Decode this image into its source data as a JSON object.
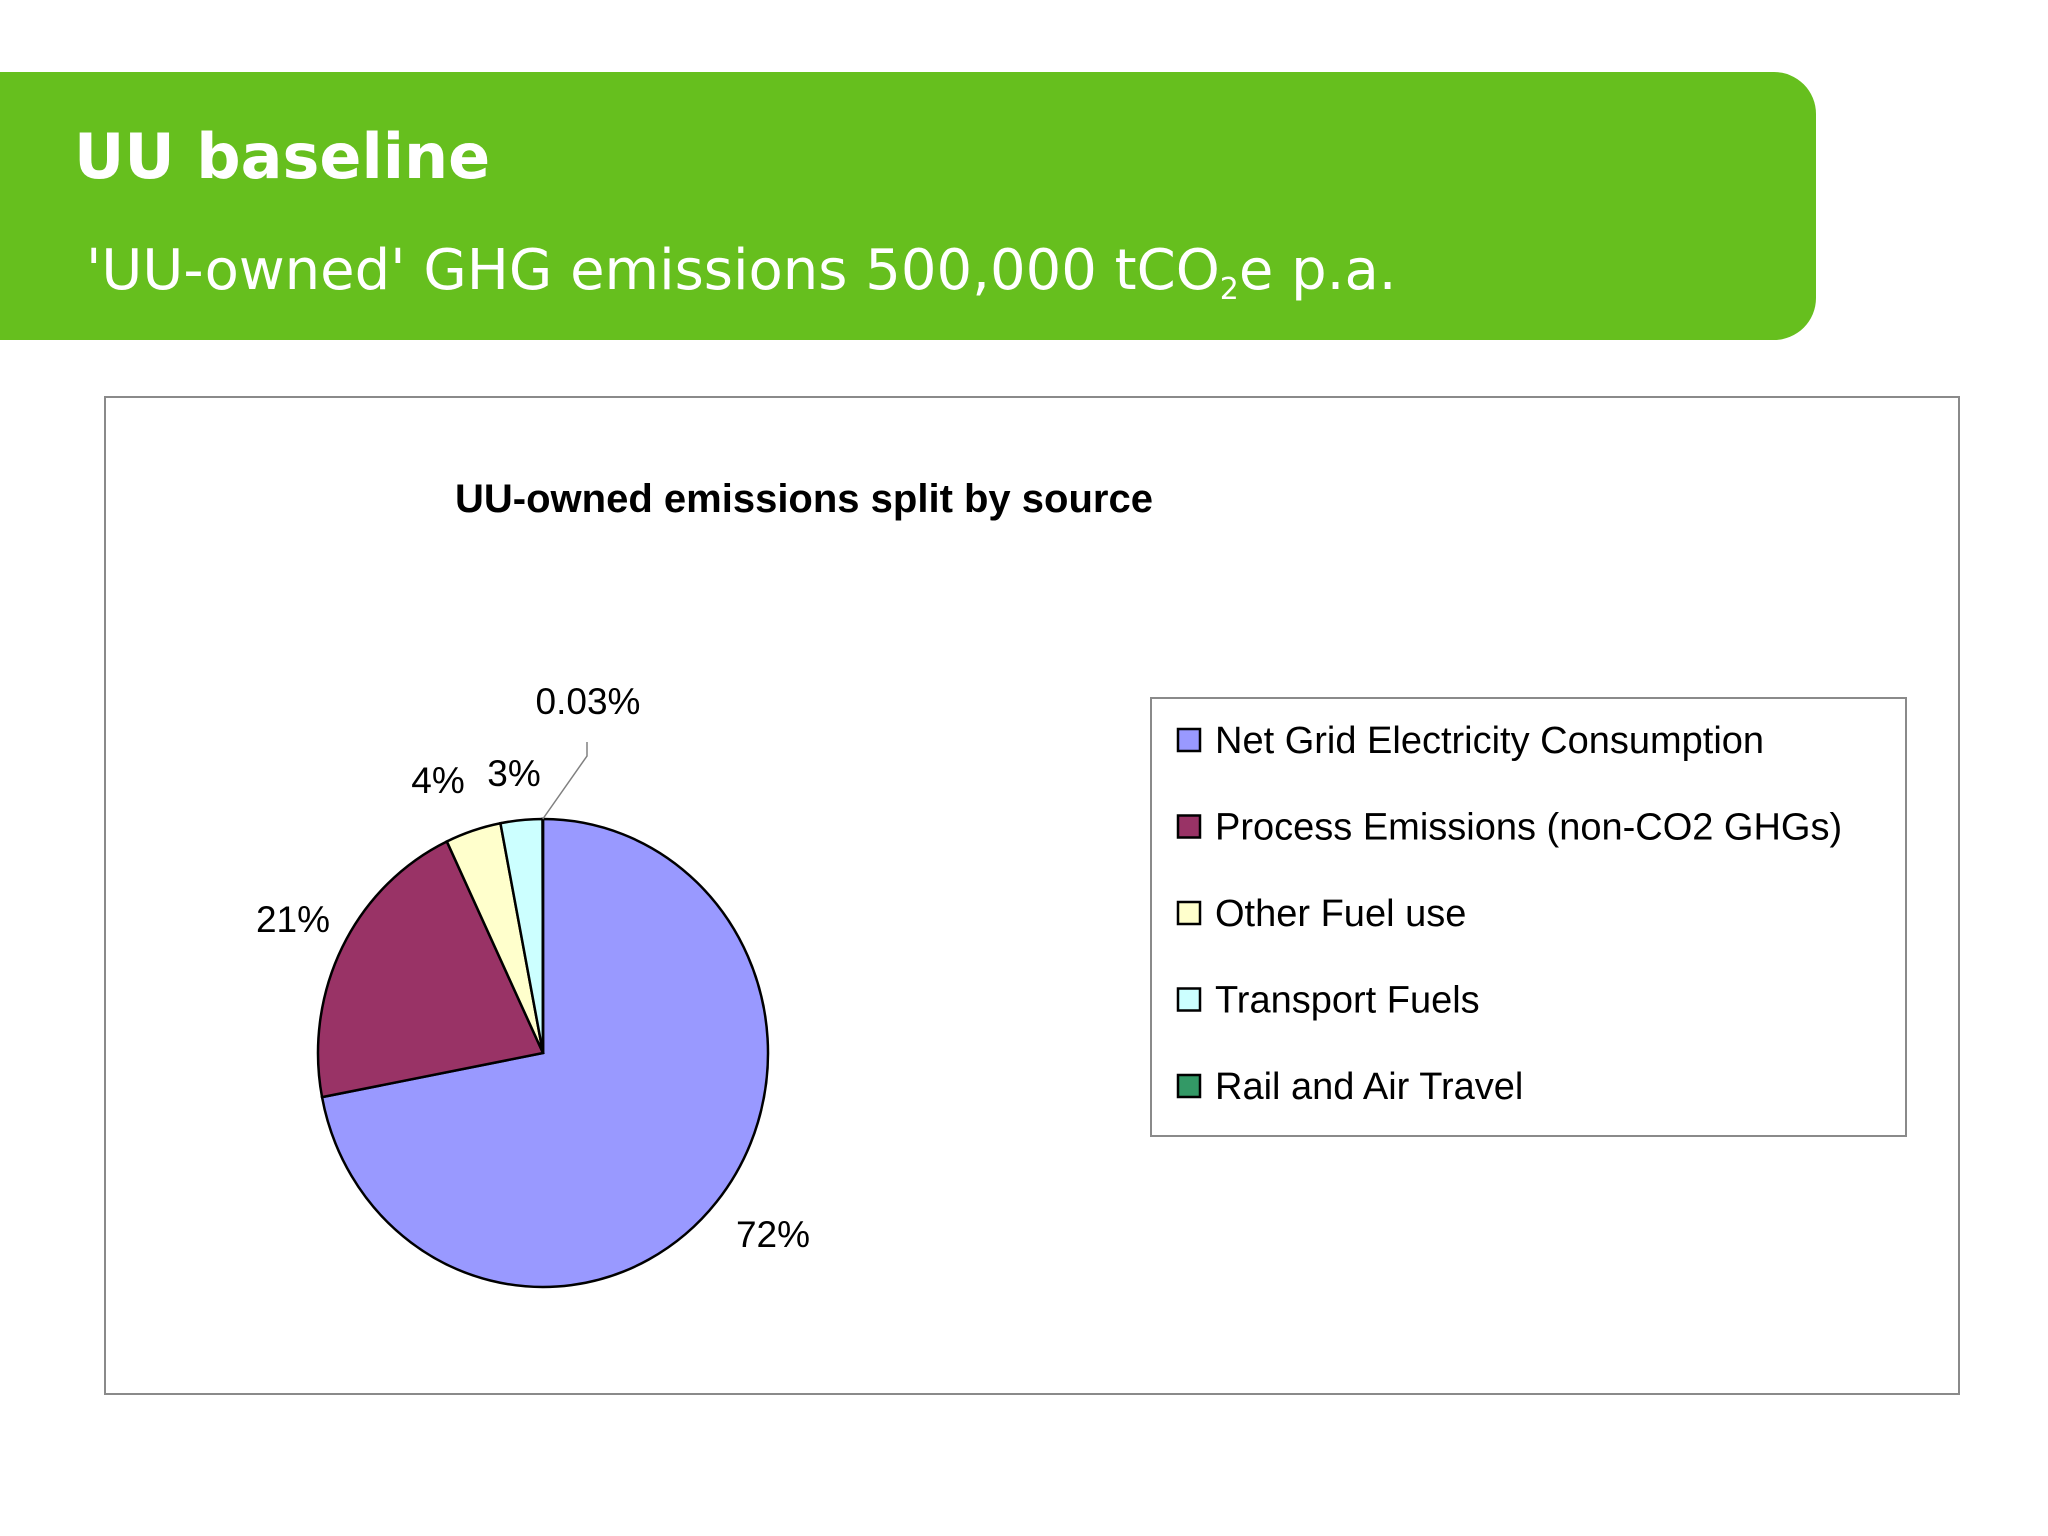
{
  "slide": {
    "title": "UU baseline",
    "subtitle_prefix": "'UU-owned' GHG emissions 500,000 tCO",
    "subtitle_sub": "2",
    "subtitle_suffix": "e p.a."
  },
  "colors": {
    "banner": "#66bf1e",
    "text_on_banner": "#ffffff"
  },
  "chart_data": {
    "type": "pie",
    "title": "UU-owned emissions split by source",
    "legend_position": "right",
    "categories": [
      "Net Grid Electricity Consumption",
      "Process Emissions (non-CO2 GHGs)",
      "Other Fuel use",
      "Transport Fuels",
      "Rail and Air Travel"
    ],
    "values": [
      72,
      21,
      4,
      3,
      0.03
    ],
    "labels": [
      "72%",
      "21%",
      "4%",
      "3%",
      "0.03%"
    ],
    "colors": [
      "#9999ff",
      "#993366",
      "#ffffcc",
      "#ccffff",
      "#339966"
    ]
  }
}
